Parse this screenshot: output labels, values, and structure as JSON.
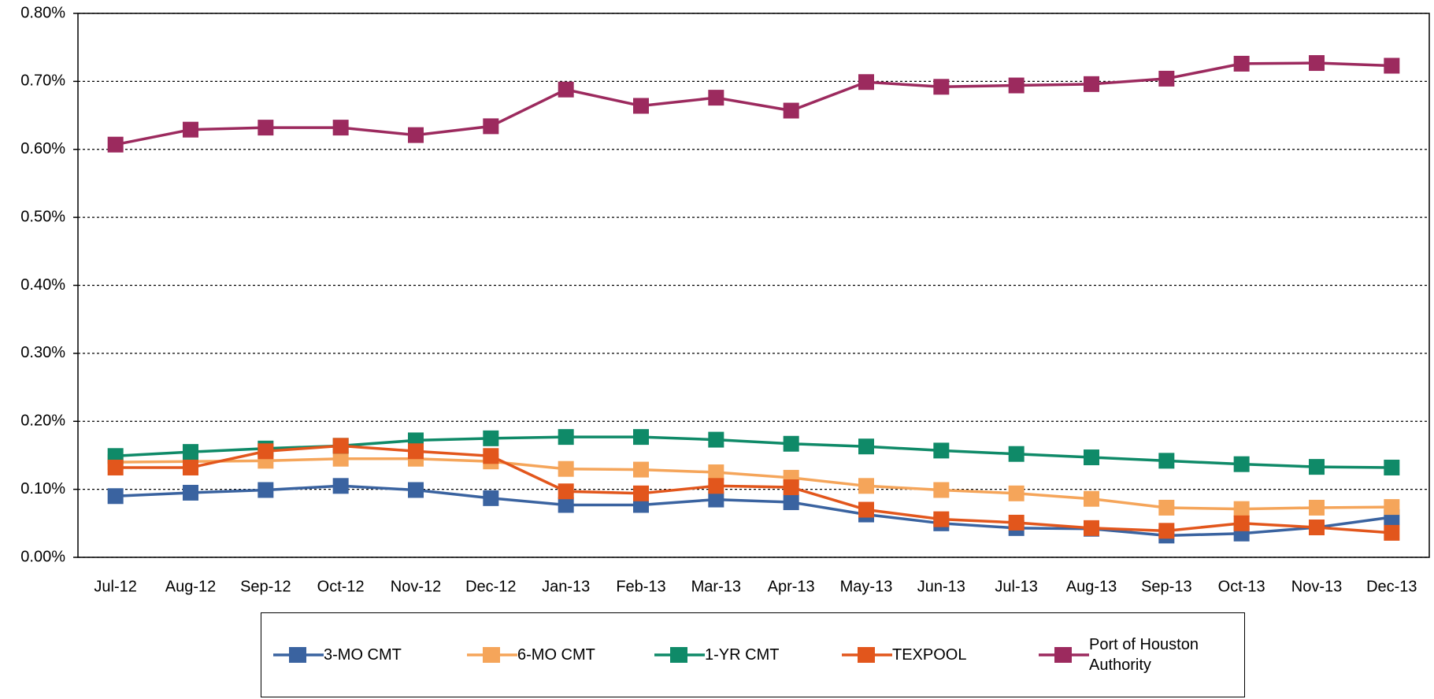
{
  "chart_data": {
    "type": "line",
    "categories": [
      "Jul-12",
      "Aug-12",
      "Sep-12",
      "Oct-12",
      "Nov-12",
      "Dec-12",
      "Jan-13",
      "Feb-13",
      "Mar-13",
      "Apr-13",
      "May-13",
      "Jun-13",
      "Jul-13",
      "Aug-13",
      "Sep-13",
      "Oct-13",
      "Nov-13",
      "Dec-13"
    ],
    "series": [
      {
        "name": "3-MO CMT",
        "color": "#3a63a0",
        "values": [
          0.09,
          0.095,
          0.099,
          0.105,
          0.099,
          0.087,
          0.077,
          0.077,
          0.085,
          0.081,
          0.063,
          0.05,
          0.043,
          0.042,
          0.032,
          0.035,
          0.044,
          0.059
        ]
      },
      {
        "name": "6-MO CMT",
        "color": "#f5a55a",
        "values": [
          0.14,
          0.141,
          0.142,
          0.145,
          0.145,
          0.141,
          0.13,
          0.129,
          0.125,
          0.117,
          0.105,
          0.099,
          0.094,
          0.086,
          0.073,
          0.071,
          0.073,
          0.074
        ]
      },
      {
        "name": "1-YR CMT",
        "color": "#0f8a68",
        "values": [
          0.149,
          0.155,
          0.16,
          0.164,
          0.172,
          0.175,
          0.177,
          0.177,
          0.173,
          0.167,
          0.163,
          0.157,
          0.152,
          0.147,
          0.142,
          0.137,
          0.133,
          0.132
        ]
      },
      {
        "name": "TEXPOOL",
        "color": "#e2561c",
        "values": [
          0.132,
          0.132,
          0.156,
          0.164,
          0.156,
          0.149,
          0.097,
          0.094,
          0.105,
          0.103,
          0.07,
          0.056,
          0.051,
          0.043,
          0.039,
          0.05,
          0.044,
          0.036
        ]
      },
      {
        "name": "Port of Houston Authority",
        "color": "#9c2a5e",
        "values": [
          0.607,
          0.629,
          0.632,
          0.632,
          0.621,
          0.634,
          0.688,
          0.664,
          0.676,
          0.657,
          0.699,
          0.692,
          0.694,
          0.696,
          0.704,
          0.726,
          0.727,
          0.723
        ]
      }
    ],
    "ylim": [
      0,
      0.8
    ],
    "yticks": [
      {
        "value": 0,
        "label": "0.00%"
      },
      {
        "value": 0.1,
        "label": "0.10%"
      },
      {
        "value": 0.2,
        "label": "0.20%"
      },
      {
        "value": 0.3,
        "label": "0.30%"
      },
      {
        "value": 0.4,
        "label": "0.40%"
      },
      {
        "value": 0.5,
        "label": "0.50%"
      },
      {
        "value": 0.6,
        "label": "0.60%"
      },
      {
        "value": 0.7,
        "label": "0.70%"
      },
      {
        "value": 0.8,
        "label": "0.80%"
      }
    ],
    "grid": true,
    "legend": "bottom"
  }
}
